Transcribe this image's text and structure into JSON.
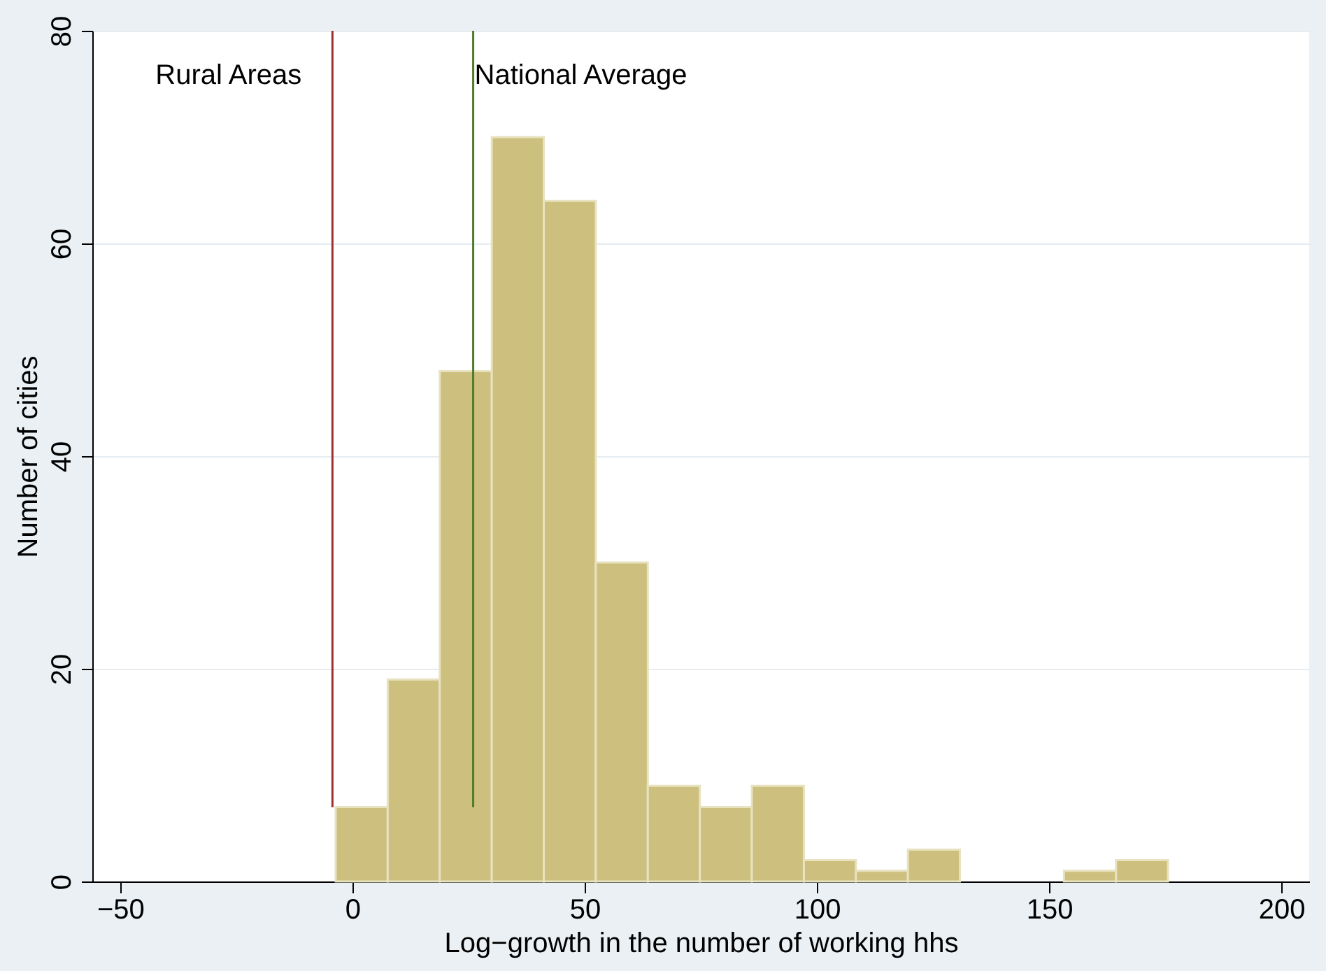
{
  "chart_data": {
    "type": "histogram",
    "xlabel": "Log−growth in the number of working hhs",
    "ylabel": "Number of cities",
    "bins": [
      -3.6,
      7.6,
      18.8,
      30.0,
      41.2,
      52.4,
      63.6,
      74.8,
      86.0,
      97.2,
      108.4,
      119.6,
      130.8,
      142.0,
      153.2,
      164.4,
      175.6
    ],
    "values": [
      7,
      19,
      48,
      70,
      64,
      30,
      9,
      7,
      9,
      2,
      1,
      3,
      0,
      0,
      1,
      2
    ],
    "color": "#cdc07e",
    "xlim": [
      -56,
      206
    ],
    "xticks": [
      {
        "value": -50,
        "label": "−50"
      },
      0,
      50,
      100,
      150,
      200
    ],
    "ylim": [
      0,
      80
    ],
    "yticks": [
      0,
      20,
      40,
      60,
      80
    ],
    "grid": "y",
    "ref_lines": [
      {
        "axis": "x",
        "value": -4.3,
        "label": "Rural Areas",
        "color": "#a0302f"
      },
      {
        "axis": "x",
        "value": 26,
        "label": "National Average",
        "color": "#4e7a2b"
      }
    ]
  }
}
